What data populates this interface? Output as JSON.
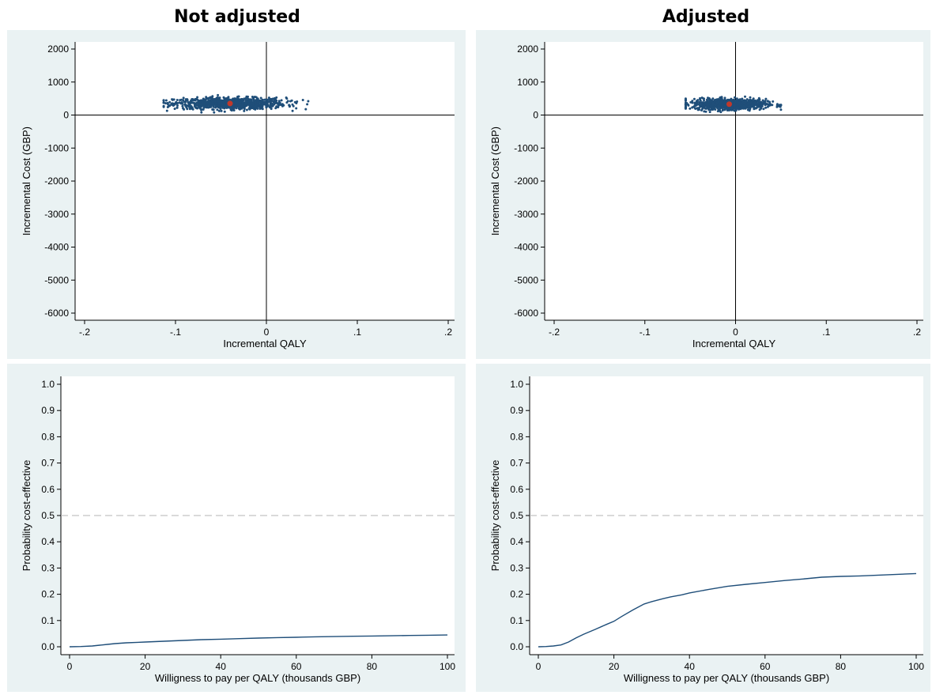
{
  "column_titles": [
    "Not adjusted",
    "Adjusted"
  ],
  "colors": {
    "panel_background": "#eaf2f3",
    "plot_background": "#ffffff",
    "scatter_points": "#1f4e79",
    "point_estimate": "#c0392b",
    "ceac_line": "#1f4e79",
    "reference_line": "#b5b5b5"
  },
  "chart_data": [
    {
      "id": "ce-plane-not-adjusted",
      "type": "scatter",
      "column_title": "Not adjusted",
      "xlabel": "Incremental QALY",
      "ylabel": "Incremental Cost (GBP)",
      "xlim": [
        -0.2,
        0.2
      ],
      "ylim": [
        -6000,
        2000
      ],
      "xticks": [
        -0.2,
        -0.1,
        0,
        0.1,
        0.2
      ],
      "xtick_labels": [
        "-.2",
        "-.1",
        "0",
        ".1",
        ".2"
      ],
      "yticks": [
        2000,
        1000,
        0,
        -1000,
        -2000,
        -3000,
        -4000,
        -5000,
        -6000
      ],
      "ytick_labels": [
        "2000",
        "1000",
        "0",
        "-1000",
        "-2000",
        "-3000",
        "-4000",
        "-5000",
        "-6000"
      ],
      "grid": false,
      "reference_lines": {
        "x": 0,
        "y": 0
      },
      "point_estimate": {
        "x": -0.04,
        "y": 350
      },
      "cloud": {
        "x_range": [
          -0.113,
          0.046
        ],
        "y_range": [
          80,
          600
        ],
        "x_mean": -0.04,
        "y_mean": 350,
        "n": 1000
      }
    },
    {
      "id": "ce-plane-adjusted",
      "type": "scatter",
      "column_title": "Adjusted",
      "xlabel": "Incremental QALY",
      "ylabel": "Incremental Cost (GBP)",
      "xlim": [
        -0.2,
        0.2
      ],
      "ylim": [
        -6000,
        2000
      ],
      "xticks": [
        -0.2,
        -0.1,
        0,
        0.1,
        0.2
      ],
      "xtick_labels": [
        "-.2",
        "-.1",
        "0",
        ".1",
        ".2"
      ],
      "yticks": [
        2000,
        1000,
        0,
        -1000,
        -2000,
        -3000,
        -4000,
        -5000,
        -6000
      ],
      "ytick_labels": [
        "2000",
        "1000",
        "0",
        "-1000",
        "-2000",
        "-3000",
        "-4000",
        "-5000",
        "-6000"
      ],
      "grid": false,
      "reference_lines": {
        "x": 0,
        "y": 0
      },
      "point_estimate": {
        "x": -0.007,
        "y": 330
      },
      "cloud": {
        "x_range": [
          -0.055,
          0.05
        ],
        "y_range": [
          90,
          560
        ],
        "x_mean": -0.007,
        "y_mean": 330,
        "n": 1000
      }
    },
    {
      "id": "ceac-not-adjusted",
      "type": "line",
      "column_title": "Not adjusted",
      "xlabel": "Willigness to pay per QALY (thousands GBP)",
      "ylabel": "Probability cost-effective",
      "xlim": [
        0,
        100
      ],
      "ylim": [
        0,
        1
      ],
      "xticks": [
        0,
        20,
        40,
        60,
        80,
        100
      ],
      "xtick_labels": [
        "0",
        "20",
        "40",
        "60",
        "80",
        "100"
      ],
      "yticks": [
        1,
        0.9,
        0.8,
        0.7,
        0.6,
        0.5,
        0.4,
        0.3,
        0.2,
        0.1,
        0
      ],
      "ytick_labels": [
        "1.0",
        "0.9",
        "0.8",
        "0.7",
        "0.6",
        "0.5",
        "0.4",
        "0.3",
        "0.2",
        "0.1",
        "0.0"
      ],
      "grid": false,
      "reference_line_y": 0.5,
      "x": [
        0,
        3,
        6,
        8,
        10,
        12,
        15,
        18,
        20,
        25,
        30,
        35,
        40,
        45,
        50,
        55,
        60,
        65,
        70,
        75,
        80,
        85,
        90,
        95,
        100
      ],
      "y": [
        0,
        0.001,
        0.003,
        0.006,
        0.009,
        0.012,
        0.015,
        0.017,
        0.018,
        0.021,
        0.024,
        0.027,
        0.029,
        0.031,
        0.033,
        0.035,
        0.036,
        0.038,
        0.039,
        0.04,
        0.041,
        0.042,
        0.043,
        0.044,
        0.045
      ]
    },
    {
      "id": "ceac-adjusted",
      "type": "line",
      "column_title": "Adjusted",
      "xlabel": "Willigness to pay per QALY (thousands GBP)",
      "ylabel": "Probability cost-effective",
      "xlim": [
        0,
        100
      ],
      "ylim": [
        0,
        1
      ],
      "xticks": [
        0,
        20,
        40,
        60,
        80,
        100
      ],
      "xtick_labels": [
        "0",
        "20",
        "40",
        "60",
        "80",
        "100"
      ],
      "yticks": [
        1,
        0.9,
        0.8,
        0.7,
        0.6,
        0.5,
        0.4,
        0.3,
        0.2,
        0.1,
        0
      ],
      "ytick_labels": [
        "1.0",
        "0.9",
        "0.8",
        "0.7",
        "0.6",
        "0.5",
        "0.4",
        "0.3",
        "0.2",
        "0.1",
        "0.0"
      ],
      "grid": false,
      "reference_line_y": 0.5,
      "x": [
        0,
        2,
        4,
        6,
        8,
        10,
        12,
        15,
        18,
        20,
        22,
        25,
        28,
        30,
        33,
        35,
        38,
        40,
        45,
        50,
        55,
        60,
        65,
        70,
        75,
        80,
        85,
        90,
        95,
        100
      ],
      "y": [
        0,
        0.001,
        0.003,
        0.007,
        0.018,
        0.034,
        0.048,
        0.066,
        0.085,
        0.097,
        0.115,
        0.14,
        0.163,
        0.172,
        0.183,
        0.19,
        0.198,
        0.205,
        0.218,
        0.23,
        0.238,
        0.245,
        0.252,
        0.258,
        0.265,
        0.268,
        0.27,
        0.273,
        0.276,
        0.279
      ]
    }
  ]
}
